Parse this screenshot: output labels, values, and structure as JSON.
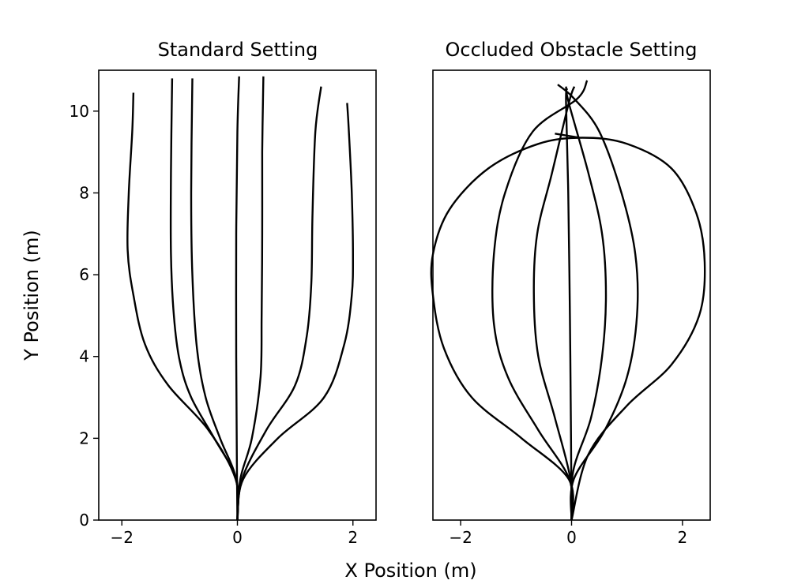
{
  "figure": {
    "xlabel": "X Position (m)",
    "ylabel": "Y Position (m)"
  },
  "chart_data": [
    {
      "type": "line",
      "title": "Standard Setting",
      "xlabel": "X Position (m)",
      "ylabel": "Y Position (m)",
      "xlim": [
        -2.4,
        2.4
      ],
      "ylim": [
        0,
        11
      ],
      "xticks": [
        -2,
        0,
        2
      ],
      "yticks": [
        0,
        2,
        4,
        6,
        8,
        10
      ],
      "grid": false,
      "legend": "none",
      "line_color": "#000000",
      "series": [
        {
          "points": [
            [
              0,
              0
            ],
            [
              -0.03,
              1.0
            ],
            [
              -0.5,
              2.2
            ],
            [
              -1.2,
              3.3
            ],
            [
              -1.6,
              4.3
            ],
            [
              -1.8,
              5.5
            ],
            [
              -1.9,
              6.6
            ],
            [
              -1.88,
              8.0
            ],
            [
              -1.82,
              9.5
            ],
            [
              -1.8,
              10.45
            ]
          ]
        },
        {
          "points": [
            [
              0,
              0
            ],
            [
              -0.02,
              1.0
            ],
            [
              -0.4,
              2.0
            ],
            [
              -0.8,
              3.0
            ],
            [
              -1.0,
              3.9
            ],
            [
              -1.1,
              5.0
            ],
            [
              -1.15,
              6.5
            ],
            [
              -1.15,
              8.5
            ],
            [
              -1.13,
              10.8
            ]
          ]
        },
        {
          "points": [
            [
              0,
              0
            ],
            [
              -0.02,
              1.0
            ],
            [
              -0.3,
              2.0
            ],
            [
              -0.55,
              3.0
            ],
            [
              -0.7,
              4.2
            ],
            [
              -0.78,
              6.0
            ],
            [
              -0.8,
              8.0
            ],
            [
              -0.78,
              10.8
            ]
          ]
        },
        {
          "points": [
            [
              0,
              0
            ],
            [
              -0.01,
              1.5
            ],
            [
              -0.02,
              4.0
            ],
            [
              -0.02,
              7.0
            ],
            [
              0,
              9.5
            ],
            [
              0.03,
              10.85
            ]
          ]
        },
        {
          "points": [
            [
              0,
              0
            ],
            [
              0.05,
              1.0
            ],
            [
              0.25,
              2.0
            ],
            [
              0.4,
              3.5
            ],
            [
              0.42,
              5.0
            ],
            [
              0.43,
              7.0
            ],
            [
              0.43,
              9.0
            ],
            [
              0.45,
              10.85
            ]
          ]
        },
        {
          "points": [
            [
              0,
              0
            ],
            [
              0.08,
              1.0
            ],
            [
              0.5,
              2.2
            ],
            [
              1.0,
              3.3
            ],
            [
              1.2,
              4.5
            ],
            [
              1.28,
              5.8
            ],
            [
              1.3,
              7.5
            ],
            [
              1.35,
              9.5
            ],
            [
              1.45,
              10.6
            ]
          ]
        },
        {
          "points": [
            [
              0,
              0
            ],
            [
              0.1,
              1.0
            ],
            [
              0.7,
              2.0
            ],
            [
              1.5,
              3.0
            ],
            [
              1.85,
              4.3
            ],
            [
              1.98,
              5.5
            ],
            [
              2.0,
              6.5
            ],
            [
              1.98,
              8.0
            ],
            [
              1.93,
              9.5
            ],
            [
              1.9,
              10.2
            ]
          ]
        }
      ]
    },
    {
      "type": "line",
      "title": "Occluded Obstacle Setting",
      "xlabel": "X Position (m)",
      "ylabel": "",
      "xlim": [
        -2.5,
        2.5
      ],
      "ylim": [
        0,
        11
      ],
      "xticks": [
        -2,
        0,
        2
      ],
      "yticks": [],
      "grid": false,
      "legend": "none",
      "line_color": "#000000",
      "series": [
        {
          "points": [
            [
              0,
              0
            ],
            [
              -0.05,
              1.0
            ],
            [
              -0.9,
              2.0
            ],
            [
              -1.8,
              3.0
            ],
            [
              -2.3,
              4.2
            ],
            [
              -2.5,
              5.5
            ],
            [
              -2.5,
              6.5
            ],
            [
              -2.2,
              7.6
            ],
            [
              -1.5,
              8.6
            ],
            [
              -0.6,
              9.2
            ],
            [
              0.2,
              9.35
            ],
            [
              1.0,
              9.2
            ],
            [
              1.8,
              8.6
            ],
            [
              2.25,
              7.5
            ],
            [
              2.4,
              6.3
            ],
            [
              2.3,
              5.0
            ],
            [
              1.8,
              3.8
            ],
            [
              1.0,
              2.8
            ],
            [
              0.3,
              1.6
            ],
            [
              0,
              0
            ]
          ]
        },
        {
          "points": [
            [
              0,
              0
            ],
            [
              -0.04,
              1.0
            ],
            [
              -0.6,
              2.2
            ],
            [
              -1.15,
              3.5
            ],
            [
              -1.4,
              4.8
            ],
            [
              -1.4,
              6.5
            ],
            [
              -1.2,
              8.0
            ],
            [
              -0.7,
              9.5
            ],
            [
              0.1,
              10.3
            ],
            [
              0.28,
              10.75
            ]
          ]
        },
        {
          "points": [
            [
              0,
              0
            ],
            [
              0.04,
              1.0
            ],
            [
              0.6,
              2.2
            ],
            [
              1.0,
              3.5
            ],
            [
              1.18,
              5.0
            ],
            [
              1.15,
              6.5
            ],
            [
              0.9,
              8.0
            ],
            [
              0.5,
              9.5
            ],
            [
              0.05,
              10.3
            ],
            [
              -0.25,
              10.65
            ]
          ]
        },
        {
          "points": [
            [
              0,
              0
            ],
            [
              -0.02,
              1.0
            ],
            [
              -0.3,
              2.5
            ],
            [
              -0.6,
              4.0
            ],
            [
              -0.68,
              5.5
            ],
            [
              -0.62,
              7.0
            ],
            [
              -0.35,
              8.5
            ],
            [
              -0.05,
              10.2
            ],
            [
              0.05,
              10.6
            ]
          ]
        },
        {
          "points": [
            [
              0,
              0
            ],
            [
              0.03,
              1.2
            ],
            [
              0.35,
              2.5
            ],
            [
              0.55,
              4.0
            ],
            [
              0.62,
              5.5
            ],
            [
              0.55,
              7.0
            ],
            [
              0.3,
              8.5
            ],
            [
              -0.05,
              10.2
            ],
            [
              -0.1,
              10.6
            ]
          ]
        },
        {
          "points": [
            [
              0,
              0
            ],
            [
              -0.01,
              2.0
            ],
            [
              -0.03,
              5.0
            ],
            [
              -0.06,
              8.0
            ],
            [
              -0.1,
              10.2
            ],
            [
              -0.08,
              10.55
            ]
          ]
        },
        {
          "points": [
            [
              -0.3,
              9.45
            ],
            [
              0.15,
              9.35
            ]
          ]
        }
      ]
    }
  ]
}
